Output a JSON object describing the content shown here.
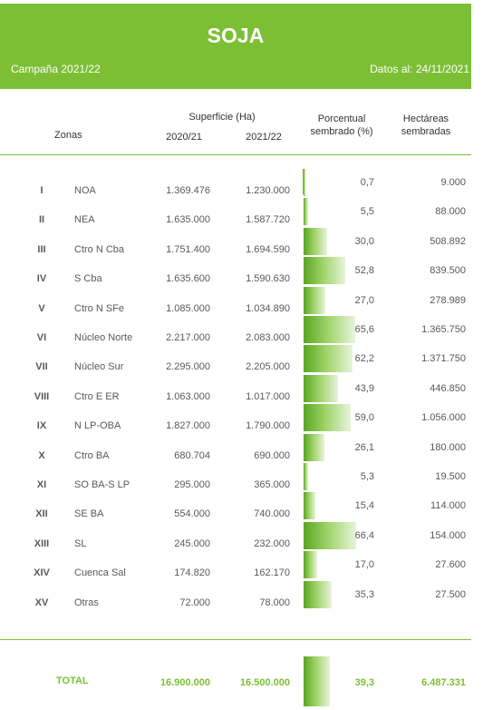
{
  "header": {
    "title": "SOJA",
    "campaign": "Campaña 2021/22",
    "data_date": "Datos al: 24/11/2021"
  },
  "columns": {
    "zones": "Zonas",
    "surface": "Superficie (Ha)",
    "year1": "2020/21",
    "year2": "2021/22",
    "percent_line1": "Porcentual",
    "percent_line2": "sembrado (%)",
    "hectares_line1": "Hectáreas",
    "hectares_line2": "sembradas"
  },
  "rows": [
    {
      "num": "I",
      "zone": "NOA",
      "s2020": "1.369.476",
      "s2021": "1.230.000",
      "pct": "0,7",
      "pct_value": 0.7,
      "ha": "9.000"
    },
    {
      "num": "II",
      "zone": "NEA",
      "s2020": "1.635.000",
      "s2021": "1.587.720",
      "pct": "5,5",
      "pct_value": 5.5,
      "ha": "88.000"
    },
    {
      "num": "III",
      "zone": "Ctro N Cba",
      "s2020": "1.751.400",
      "s2021": "1.694.590",
      "pct": "30,0",
      "pct_value": 30.0,
      "ha": "508.892"
    },
    {
      "num": "IV",
      "zone": "S Cba",
      "s2020": "1.635.600",
      "s2021": "1.590.630",
      "pct": "52,8",
      "pct_value": 52.8,
      "ha": "839.500"
    },
    {
      "num": "V",
      "zone": "Ctro N SFe",
      "s2020": "1.085.000",
      "s2021": "1.034.890",
      "pct": "27,0",
      "pct_value": 27.0,
      "ha": "278.989"
    },
    {
      "num": "VI",
      "zone": "Núcleo Norte",
      "s2020": "2.217.000",
      "s2021": "2.083.000",
      "pct": "65,6",
      "pct_value": 65.6,
      "ha": "1.365.750"
    },
    {
      "num": "VII",
      "zone": "Núcleo Sur",
      "s2020": "2.295.000",
      "s2021": "2.205.000",
      "pct": "62,2",
      "pct_value": 62.2,
      "ha": "1.371.750"
    },
    {
      "num": "VIII",
      "zone": "Ctro E ER",
      "s2020": "1.063.000",
      "s2021": "1.017.000",
      "pct": "43,9",
      "pct_value": 43.9,
      "ha": "446.850"
    },
    {
      "num": "IX",
      "zone": "N LP-OBA",
      "s2020": "1.827.000",
      "s2021": "1.790.000",
      "pct": "59,0",
      "pct_value": 59.0,
      "ha": "1.056.000"
    },
    {
      "num": "X",
      "zone": "Ctro BA",
      "s2020": "680.704",
      "s2021": "690.000",
      "pct": "26,1",
      "pct_value": 26.1,
      "ha": "180.000"
    },
    {
      "num": "XI",
      "zone": "SO BA-S LP",
      "s2020": "295.000",
      "s2021": "365.000",
      "pct": "5,3",
      "pct_value": 5.3,
      "ha": "19.500"
    },
    {
      "num": "XII",
      "zone": "SE BA",
      "s2020": "554.000",
      "s2021": "740.000",
      "pct": "15,4",
      "pct_value": 15.4,
      "ha": "114.000"
    },
    {
      "num": "XIII",
      "zone": "SL",
      "s2020": "245.000",
      "s2021": "232.000",
      "pct": "66,4",
      "pct_value": 66.4,
      "ha": "154.000"
    },
    {
      "num": "XIV",
      "zone": "Cuenca Sal",
      "s2020": "174.820",
      "s2021": "162.170",
      "pct": "17,0",
      "pct_value": 17.0,
      "ha": "27.600"
    },
    {
      "num": "XV",
      "zone": "Otras",
      "s2020": "72.000",
      "s2021": "78.000",
      "pct": "35,3",
      "pct_value": 35.3,
      "ha": "27.500"
    }
  ],
  "total": {
    "label": "TOTAL",
    "s2020": "16.900.000",
    "s2021": "16.500.000",
    "pct": "39,3",
    "pct_value": 39.3,
    "ha": "6.487.331"
  },
  "colors": {
    "accent": "#7cbf35",
    "text": "#595959"
  }
}
